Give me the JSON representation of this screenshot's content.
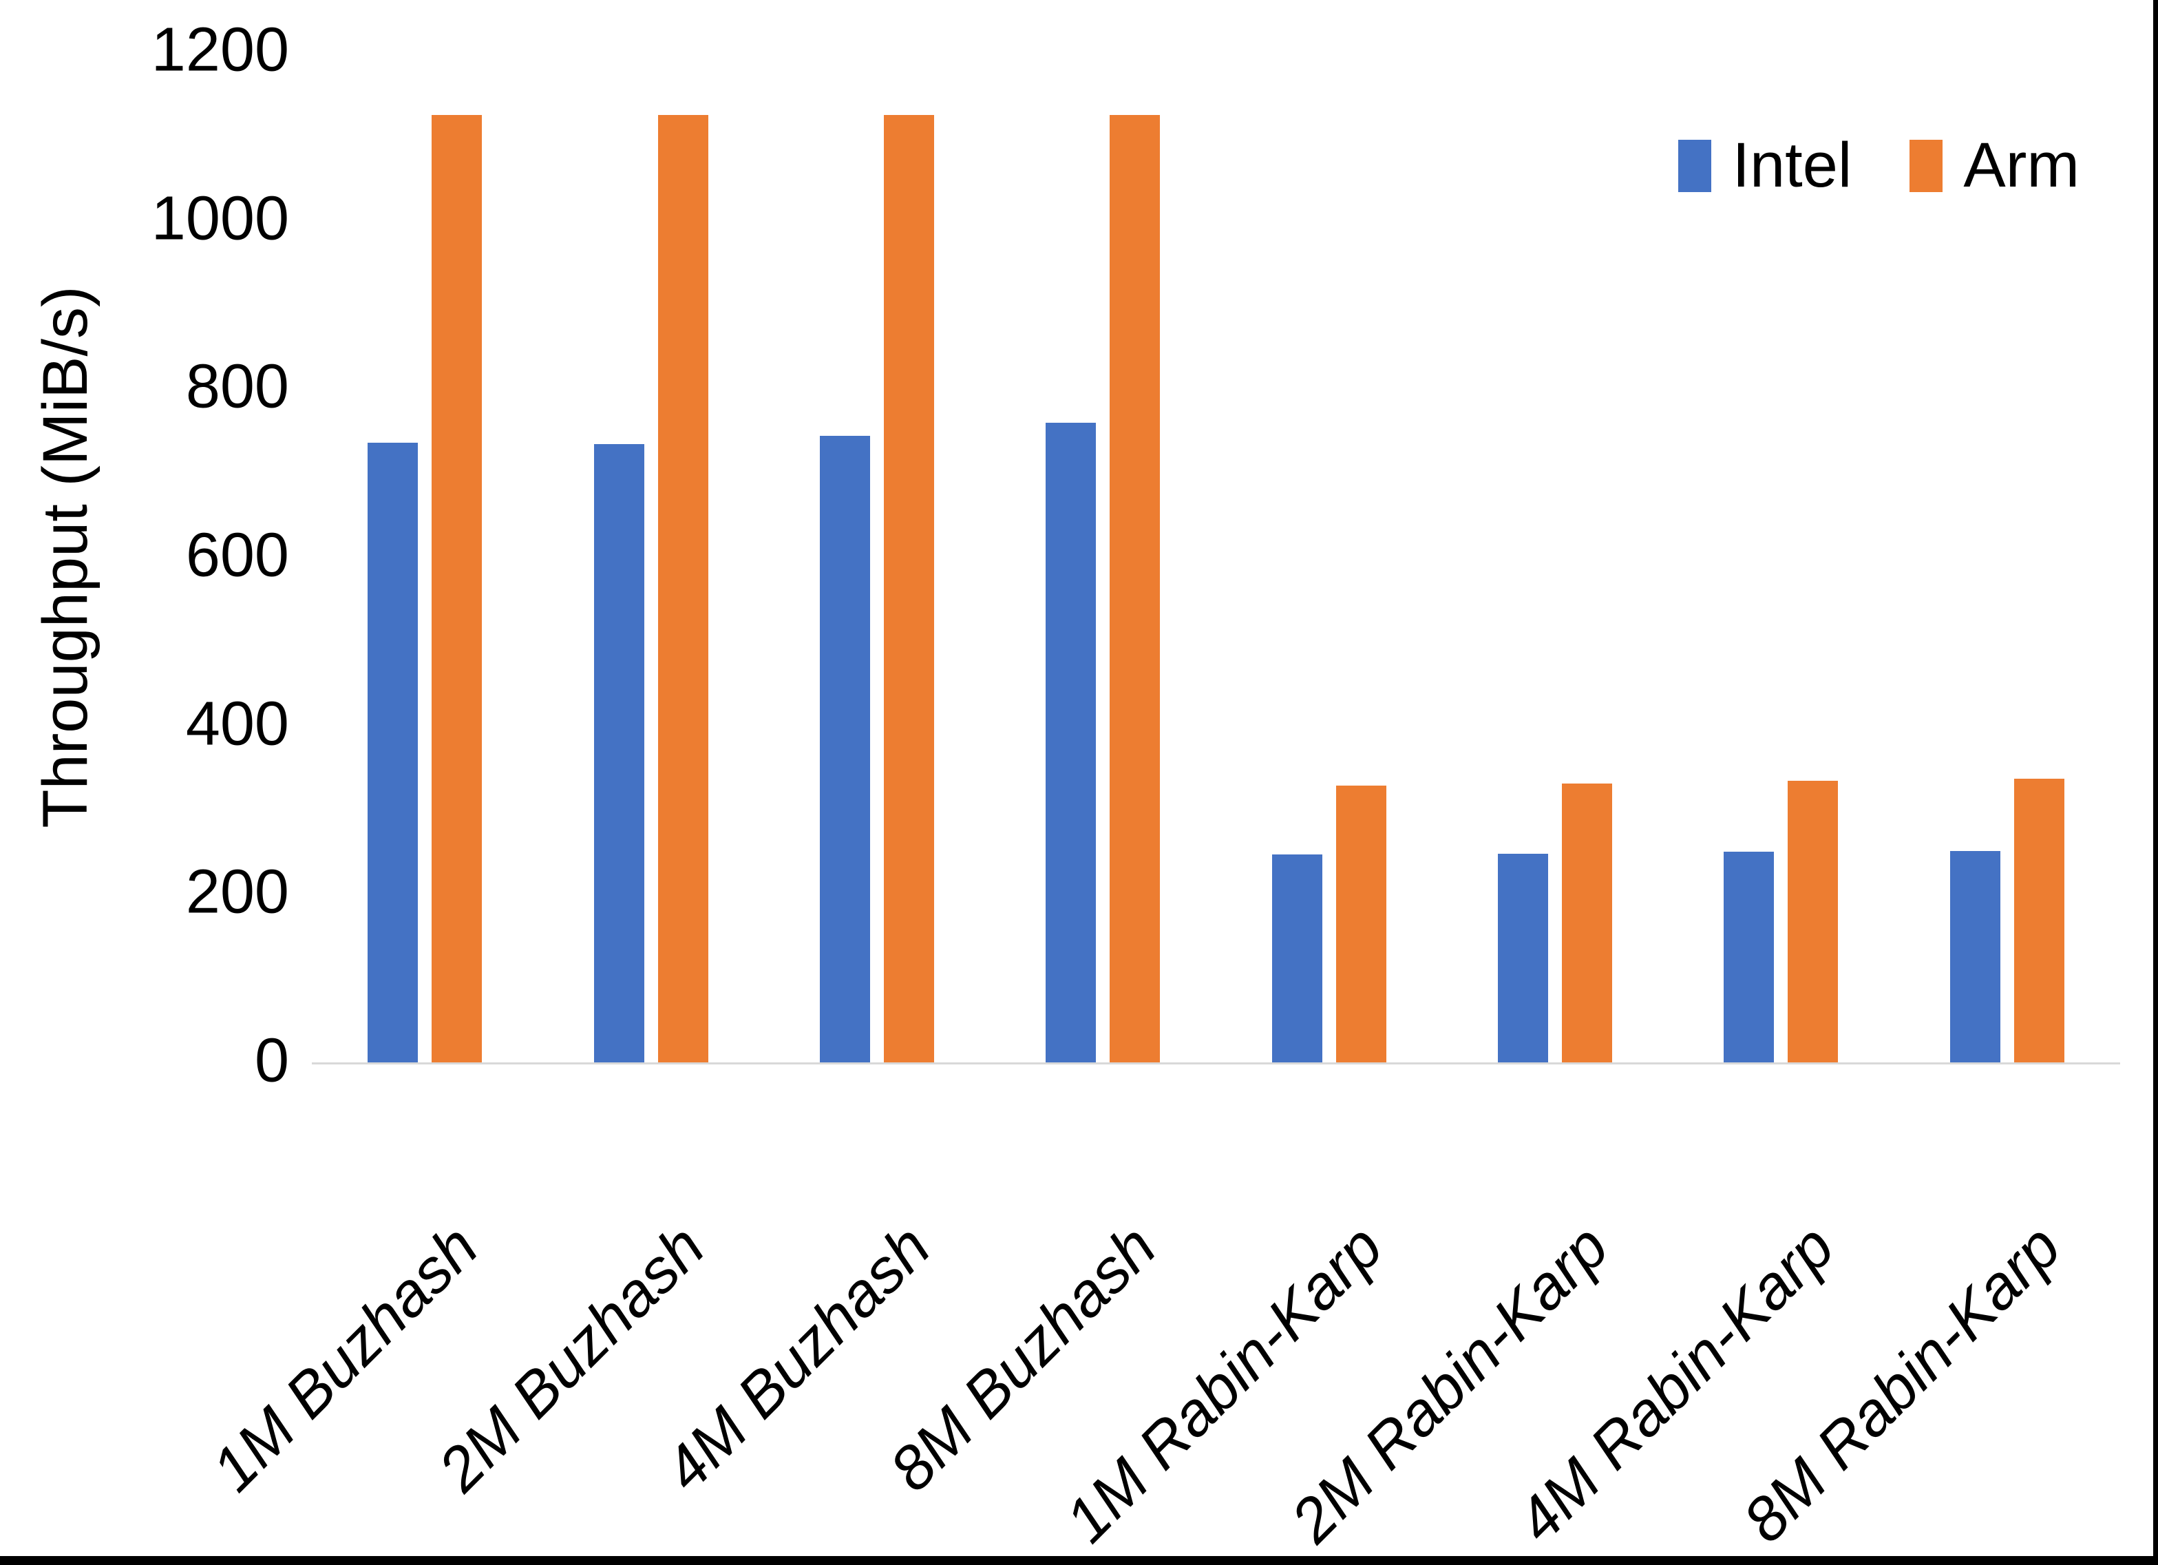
{
  "chart_data": {
    "type": "bar",
    "title": "",
    "ylabel": "Throughput (MiB/s)",
    "ylim": [
      0,
      1200
    ],
    "yticks": [
      0,
      200,
      400,
      600,
      800,
      1000,
      1200
    ],
    "grid": false,
    "legend_position": "top-right",
    "categories": [
      "1M Buzhash",
      "2M Buzhash",
      "4M Buzhash",
      "8M Buzhash",
      "1M Rabin-Karp",
      "2M Rabin-Karp",
      "4M Rabin-Karp",
      "8M Rabin-Karp"
    ],
    "series": [
      {
        "name": "Intel",
        "color": "#4472C4",
        "values": [
          736,
          734,
          744,
          759,
          247,
          248,
          250,
          251
        ]
      },
      {
        "name": "Arm",
        "color": "#ED7D31",
        "values": [
          1125,
          1125,
          1125,
          1125,
          329,
          331,
          334,
          337
        ]
      }
    ]
  },
  "frame": {
    "background_color": "#FFFFFF",
    "border_color": "#000000",
    "axis_line_color": "#D9D9D9",
    "text_color": "#000000"
  }
}
